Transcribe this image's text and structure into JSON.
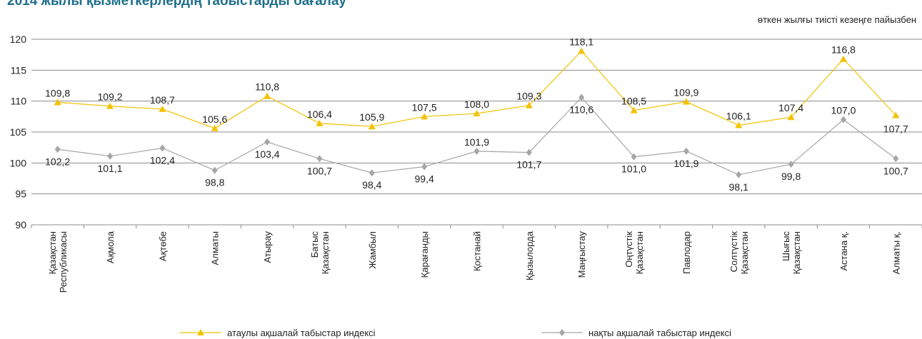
{
  "title": "2014 жылы қызметкерлердің табыстарды бағалау",
  "subtitle": "өткен жылғы тиісті кезеңге пайызбен",
  "colors": {
    "nominal": "#f2c200",
    "real": "#a6a6a6",
    "grid": "#8c8c8c"
  },
  "chart_data": {
    "type": "line",
    "title": "2014 жылы қызметкерлердің табыстарды бағалау",
    "subtitle": "өткен жылғы тиісті кезеңге пайызбен",
    "xlabel": "",
    "ylabel": "",
    "ylim": [
      90,
      120
    ],
    "yticks": [
      90,
      95,
      100,
      105,
      110,
      115,
      120
    ],
    "grid": true,
    "legend": "bottom",
    "categories": [
      [
        "Қазақстан",
        "Республикасы"
      ],
      [
        "Ақмола"
      ],
      [
        "Ақтөбе"
      ],
      [
        "Алматы"
      ],
      [
        "Атырау"
      ],
      [
        "Батыс",
        "Қазақстан"
      ],
      [
        "Жамбыл"
      ],
      [
        "Қарағанды"
      ],
      [
        "Қостанай"
      ],
      [
        "Қызылорда"
      ],
      [
        "Маңғыстау"
      ],
      [
        "Оңтүстік",
        "Қазақстан"
      ],
      [
        "Павлодар"
      ],
      [
        "Солтүстік",
        "Қазақстан"
      ],
      [
        "Шығыс",
        "Қазақстан"
      ],
      [
        "Астана қ."
      ],
      [
        "Алматы қ."
      ]
    ],
    "series": [
      {
        "name": "атаулы ақшалай табыстар индексі",
        "marker": "triangle",
        "values": [
          109.8,
          109.2,
          108.7,
          105.6,
          110.8,
          106.4,
          105.9,
          107.5,
          108.0,
          109.3,
          118.1,
          108.5,
          109.9,
          106.1,
          107.4,
          116.8,
          107.7
        ],
        "labels": [
          "109,8",
          "109,2",
          "108,7",
          "105,6",
          "110,8",
          "106,4",
          "105,9",
          "107,5",
          "108,0",
          "109,3",
          "118,1",
          "108,5",
          "109,9",
          "106,1",
          "107,4",
          "116,8",
          "107,7"
        ]
      },
      {
        "name": "нақты ақшалай табыстар индексі",
        "marker": "diamond",
        "values": [
          102.2,
          101.1,
          102.4,
          98.8,
          103.4,
          100.7,
          98.4,
          99.4,
          101.9,
          101.7,
          110.6,
          101.0,
          101.9,
          98.1,
          99.8,
          107.0,
          100.7
        ],
        "labels": [
          "102,2",
          "101,1",
          "102,4",
          "98,8",
          "103,4",
          "100,7",
          "98,4",
          "99,4",
          "101,9",
          "101,7",
          "110,6",
          "101,0",
          "101,9",
          "98,1",
          "99,8",
          "107,0",
          "100,7"
        ]
      }
    ]
  }
}
